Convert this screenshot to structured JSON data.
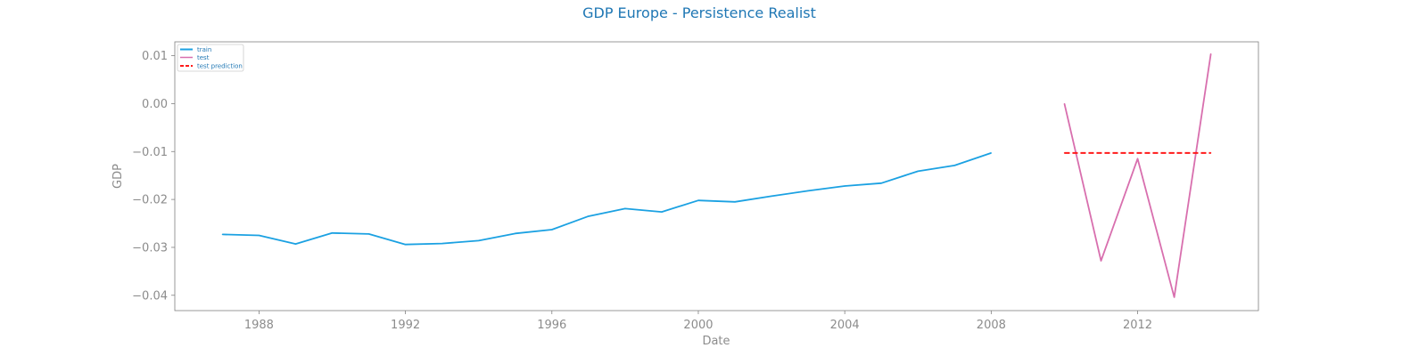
{
  "chart_data": {
    "type": "line",
    "title": "GDP Europe - Persistence Realist",
    "xlabel": "Date",
    "ylabel": "GDP",
    "xlim": [
      1985.7,
      2015.3
    ],
    "ylim": [
      -0.0432,
      0.0129
    ],
    "x_ticks": [
      1988,
      1992,
      1996,
      2000,
      2004,
      2008,
      2012
    ],
    "y_ticks": [
      0.01,
      0.0,
      -0.01,
      -0.02,
      -0.03,
      -0.04
    ],
    "y_tick_labels": [
      "0.01",
      "0.00",
      "−0.01",
      "−0.02",
      "−0.03",
      "−0.04"
    ],
    "grid": false,
    "legend_position": "upper-left",
    "series": [
      {
        "name": "train",
        "color": "#1ba1e2",
        "style": "solid",
        "x": [
          1987,
          1988,
          1989,
          1990,
          1991,
          1992,
          1993,
          1994,
          1995,
          1996,
          1997,
          1998,
          1999,
          2000,
          2001,
          2002,
          2003,
          2004,
          2005,
          2006,
          2007,
          2008
        ],
        "y": [
          -0.0273,
          -0.0275,
          -0.0293,
          -0.027,
          -0.0272,
          -0.0294,
          -0.0292,
          -0.0286,
          -0.0271,
          -0.0263,
          -0.0235,
          -0.0219,
          -0.0226,
          -0.0202,
          -0.0205,
          -0.0193,
          -0.0182,
          -0.0172,
          -0.0166,
          -0.0141,
          -0.0129,
          -0.0103
        ]
      },
      {
        "name": "test",
        "color": "#d86fae",
        "style": "solid",
        "x": [
          2010,
          2011,
          2012,
          2013,
          2014
        ],
        "y": [
          0.0,
          -0.0328,
          -0.0115,
          -0.0404,
          0.0104
        ]
      },
      {
        "name": "test prediction",
        "color": "#ff1a1a",
        "style": "dashed",
        "x": [
          2010,
          2011,
          2012,
          2013,
          2014
        ],
        "y": [
          -0.0103,
          -0.0103,
          -0.0103,
          -0.0103,
          -0.0103
        ]
      }
    ]
  }
}
